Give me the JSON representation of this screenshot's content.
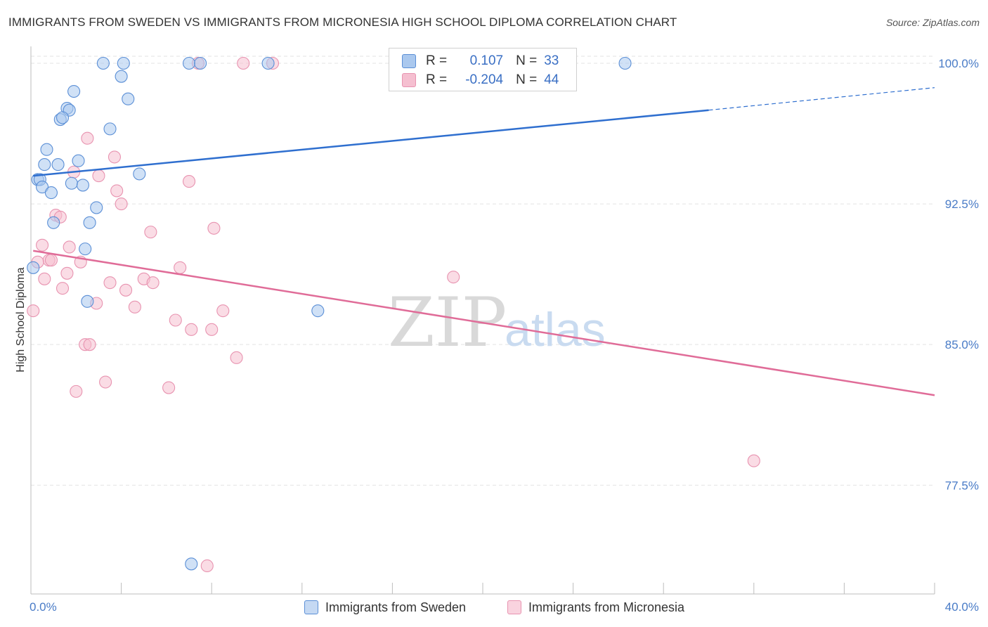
{
  "header": {
    "title": "IMMIGRANTS FROM SWEDEN VS IMMIGRANTS FROM MICRONESIA HIGH SCHOOL DIPLOMA CORRELATION CHART",
    "source": "Source: ZipAtlas.com"
  },
  "colors": {
    "sweden_fill": "#aac8ee",
    "sweden_stroke": "#5b8fd6",
    "sweden_line": "#2f6fcf",
    "micronesia_fill": "#f5bfd0",
    "micronesia_stroke": "#e893b0",
    "micronesia_line": "#e06c98",
    "grid": "#e3e3e3",
    "tick_text": "#4a7cc7"
  },
  "legend": {
    "rows": [
      {
        "r_label": "R =",
        "r_value": "0.107",
        "n_label": "N =",
        "n_value": "33"
      },
      {
        "r_label": "R =",
        "r_value": "-0.204",
        "n_label": "N =",
        "n_value": "44"
      }
    ]
  },
  "bottom_legend": {
    "sweden": "Immigrants from Sweden",
    "micronesia": "Immigrants from Micronesia"
  },
  "watermark": {
    "zip": "ZIP",
    "atlas": "atlas"
  },
  "chart_data": {
    "type": "scatter",
    "title": "IMMIGRANTS FROM SWEDEN VS IMMIGRANTS FROM MICRONESIA HIGH SCHOOL DIPLOMA CORRELATION CHART",
    "xlabel": "",
    "ylabel": "High School Diploma",
    "xlim": [
      0,
      40
    ],
    "ylim": [
      71.7,
      100.9
    ],
    "x_tick_labels": [
      "0.0%",
      "40.0%"
    ],
    "y_ticks": [
      100.0,
      92.5,
      85.0,
      77.5
    ],
    "y_tick_labels": [
      "100.0%",
      "92.5%",
      "85.0%",
      "77.5%"
    ],
    "grid": true,
    "series": [
      {
        "name": "Immigrants from Sweden",
        "r": 0.107,
        "n": 33,
        "trend": {
          "x0": 0.1,
          "y0": 94.0,
          "x1": 30.0,
          "y1": 97.5,
          "dash_x1": 40.0,
          "dash_y1": 98.7
        },
        "points": [
          [
            3.2,
            100.0
          ],
          [
            4.1,
            100.0
          ],
          [
            7.0,
            100.0
          ],
          [
            7.5,
            100.0
          ],
          [
            10.5,
            100.0
          ],
          [
            26.3,
            100.0
          ],
          [
            4.0,
            99.3
          ],
          [
            1.9,
            98.5
          ],
          [
            4.3,
            98.1
          ],
          [
            1.6,
            97.6
          ],
          [
            1.7,
            97.5
          ],
          [
            1.3,
            97.0
          ],
          [
            1.4,
            97.1
          ],
          [
            3.5,
            96.5
          ],
          [
            0.7,
            95.4
          ],
          [
            0.6,
            94.6
          ],
          [
            1.2,
            94.6
          ],
          [
            2.1,
            94.8
          ],
          [
            4.8,
            94.1
          ],
          [
            0.3,
            93.8
          ],
          [
            0.4,
            93.8
          ],
          [
            1.8,
            93.6
          ],
          [
            2.3,
            93.5
          ],
          [
            0.5,
            93.4
          ],
          [
            0.9,
            93.1
          ],
          [
            2.9,
            92.3
          ],
          [
            1.0,
            91.5
          ],
          [
            2.6,
            91.5
          ],
          [
            2.4,
            90.1
          ],
          [
            0.1,
            89.1
          ],
          [
            2.5,
            87.3
          ],
          [
            12.7,
            86.8
          ],
          [
            7.1,
            73.3
          ]
        ]
      },
      {
        "name": "Immigrants from Micronesia",
        "r": -0.204,
        "n": 44,
        "trend": {
          "x0": 0.1,
          "y0": 90.0,
          "x1": 40.0,
          "y1": 82.3
        },
        "points": [
          [
            7.4,
            100.0
          ],
          [
            9.4,
            100.0
          ],
          [
            10.7,
            100.0
          ],
          [
            2.5,
            96.0
          ],
          [
            3.7,
            95.0
          ],
          [
            1.9,
            94.2
          ],
          [
            3.0,
            94.0
          ],
          [
            7.0,
            93.7
          ],
          [
            3.8,
            93.2
          ],
          [
            4.0,
            92.5
          ],
          [
            1.1,
            91.9
          ],
          [
            1.3,
            91.8
          ],
          [
            8.1,
            91.2
          ],
          [
            5.3,
            91.0
          ],
          [
            0.5,
            90.3
          ],
          [
            1.7,
            90.2
          ],
          [
            0.8,
            89.5
          ],
          [
            0.9,
            89.5
          ],
          [
            0.3,
            89.4
          ],
          [
            2.2,
            89.4
          ],
          [
            6.6,
            89.1
          ],
          [
            1.6,
            88.8
          ],
          [
            18.7,
            88.6
          ],
          [
            0.6,
            88.5
          ],
          [
            5.0,
            88.5
          ],
          [
            3.5,
            88.3
          ],
          [
            5.4,
            88.3
          ],
          [
            1.4,
            88.0
          ],
          [
            4.2,
            87.9
          ],
          [
            2.9,
            87.2
          ],
          [
            4.6,
            87.0
          ],
          [
            0.1,
            86.8
          ],
          [
            8.5,
            86.8
          ],
          [
            6.4,
            86.3
          ],
          [
            7.1,
            85.8
          ],
          [
            8.0,
            85.8
          ],
          [
            2.4,
            85.0
          ],
          [
            2.6,
            85.0
          ],
          [
            9.1,
            84.3
          ],
          [
            3.3,
            83.0
          ],
          [
            6.1,
            82.7
          ],
          [
            2.0,
            82.5
          ],
          [
            32.0,
            78.8
          ],
          [
            7.8,
            73.2
          ]
        ]
      }
    ]
  }
}
